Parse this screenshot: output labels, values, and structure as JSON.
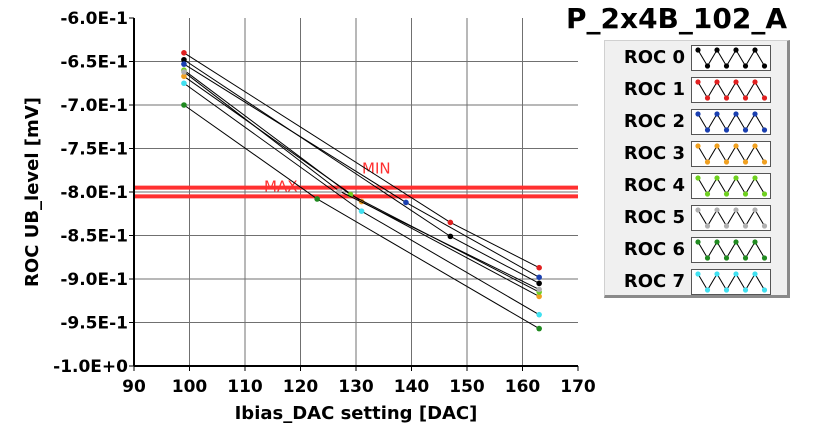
{
  "module_title": "P_2x4B_102_A",
  "legend": [
    {
      "label": "ROC 0",
      "color": "#000000"
    },
    {
      "label": "ROC 1",
      "color": "#e02020"
    },
    {
      "label": "ROC 2",
      "color": "#1a3fb0"
    },
    {
      "label": "ROC 3",
      "color": "#f0a020"
    },
    {
      "label": "ROC 4",
      "color": "#70d020"
    },
    {
      "label": "ROC 5",
      "color": "#b0b0b0"
    },
    {
      "label": "ROC 6",
      "color": "#208a20"
    },
    {
      "label": "ROC 7",
      "color": "#40e0f0"
    }
  ],
  "chart_data": {
    "type": "line",
    "xlabel": "Ibias_DAC setting [DAC]",
    "ylabel": "ROC UB_level [mV]",
    "xlim": [
      90,
      170
    ],
    "ylim": [
      -1.0,
      -0.6
    ],
    "x_ticks": [
      90,
      100,
      110,
      120,
      130,
      140,
      150,
      160,
      170
    ],
    "y_ticks": [
      -0.6,
      -0.65,
      -0.7,
      -0.75,
      -0.8,
      -0.85,
      -0.9,
      -0.95,
      -1.0
    ],
    "y_tick_labels": [
      "-6.0E-1",
      "-6.5E-1",
      "-7.0E-1",
      "-7.5E-1",
      "-8.0E-1",
      "-8.5E-1",
      "-9.0E-1",
      "-9.5E-1",
      "-1.0E+0"
    ],
    "grid": true,
    "thresholds": [
      {
        "label": "MIN",
        "value": -0.795,
        "color": "#ff3030"
      },
      {
        "label": "MAX",
        "value": -0.805,
        "color": "#ff3030"
      }
    ],
    "series": [
      {
        "color": "#000000",
        "points": [
          [
            99,
            -0.648
          ],
          [
            147,
            -0.851
          ],
          [
            163,
            -0.905
          ]
        ]
      },
      {
        "color": "#e02020",
        "points": [
          [
            99,
            -0.64
          ],
          [
            147,
            -0.835
          ],
          [
            163,
            -0.887
          ]
        ]
      },
      {
        "color": "#1a3fb0",
        "points": [
          [
            99,
            -0.653
          ],
          [
            139,
            -0.812
          ],
          [
            163,
            -0.898
          ]
        ]
      },
      {
        "color": "#f0a020",
        "points": [
          [
            99,
            -0.667
          ],
          [
            131,
            -0.811
          ],
          [
            163,
            -0.92
          ]
        ]
      },
      {
        "color": "#70d020",
        "points": [
          [
            99,
            -0.66
          ],
          [
            129,
            -0.803
          ],
          [
            163,
            -0.915
          ]
        ]
      },
      {
        "color": "#b0b0b0",
        "points": [
          [
            99,
            -0.662
          ],
          [
            127,
            -0.799
          ],
          [
            163,
            -0.912
          ]
        ]
      },
      {
        "color": "#208a20",
        "points": [
          [
            99,
            -0.7
          ],
          [
            123,
            -0.808
          ],
          [
            163,
            -0.957
          ]
        ]
      },
      {
        "color": "#40e0f0",
        "points": [
          [
            99,
            -0.675
          ],
          [
            131,
            -0.822
          ],
          [
            163,
            -0.941
          ]
        ]
      }
    ]
  }
}
